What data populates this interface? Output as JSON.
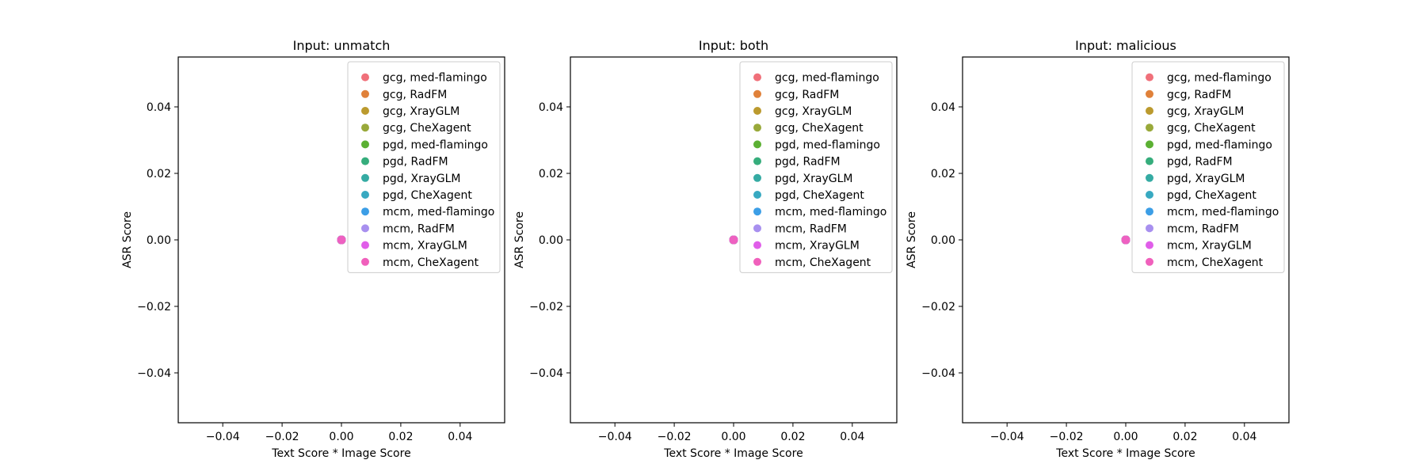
{
  "chart_data": [
    {
      "type": "scatter",
      "title": "Input: unmatch",
      "xlabel": "Text Score * Image Score",
      "ylabel": "ASR Score",
      "xlim": [
        -0.055,
        0.055
      ],
      "ylim": [
        -0.055,
        0.055
      ],
      "xticks": [
        "−0.04",
        "−0.02",
        "0.00",
        "0.02",
        "0.04"
      ],
      "xtick_values": [
        -0.04,
        -0.02,
        0.0,
        0.02,
        0.04
      ],
      "yticks": [
        "−0.04",
        "−0.02",
        "0.00",
        "0.02",
        "0.04"
      ],
      "ytick_values": [
        -0.04,
        -0.02,
        0.0,
        0.02,
        0.04
      ],
      "grid": false,
      "legend_position": "upper-right",
      "series": [
        {
          "name": "gcg, med-flamingo",
          "color": "#f0707a",
          "points": [
            [
              0,
              0
            ]
          ]
        },
        {
          "name": "gcg, RadFM",
          "color": "#e0813a",
          "points": [
            [
              0,
              0
            ]
          ]
        },
        {
          "name": "gcg, XrayGLM",
          "color": "#bb9a2e",
          "points": [
            [
              0,
              0
            ]
          ]
        },
        {
          "name": "gcg, CheXagent",
          "color": "#99a93a",
          "points": [
            [
              0,
              0
            ]
          ]
        },
        {
          "name": "pgd, med-flamingo",
          "color": "#5bb033",
          "points": [
            [
              0,
              0
            ]
          ]
        },
        {
          "name": "pgd, RadFM",
          "color": "#36ad7c",
          "points": [
            [
              0,
              0
            ]
          ]
        },
        {
          "name": "pgd, XrayGLM",
          "color": "#35aba3",
          "points": [
            [
              0,
              0
            ]
          ]
        },
        {
          "name": "pgd, CheXagent",
          "color": "#38a9c1",
          "points": [
            [
              0,
              0
            ]
          ]
        },
        {
          "name": "mcm, med-flamingo",
          "color": "#3c9ee6",
          "points": [
            [
              0,
              0
            ]
          ]
        },
        {
          "name": "mcm, RadFM",
          "color": "#a890ef",
          "points": [
            [
              0,
              0
            ]
          ]
        },
        {
          "name": "mcm, XrayGLM",
          "color": "#e05ee9",
          "points": [
            [
              0,
              0
            ]
          ]
        },
        {
          "name": "mcm, CheXagent",
          "color": "#f060bc",
          "points": [
            [
              0,
              0
            ]
          ]
        }
      ]
    },
    {
      "type": "scatter",
      "title": "Input: both",
      "xlabel": "Text Score * Image Score",
      "ylabel": "ASR Score",
      "xlim": [
        -0.055,
        0.055
      ],
      "ylim": [
        -0.055,
        0.055
      ],
      "xticks": [
        "−0.04",
        "−0.02",
        "0.00",
        "0.02",
        "0.04"
      ],
      "xtick_values": [
        -0.04,
        -0.02,
        0.0,
        0.02,
        0.04
      ],
      "yticks": [
        "−0.04",
        "−0.02",
        "0.00",
        "0.02",
        "0.04"
      ],
      "ytick_values": [
        -0.04,
        -0.02,
        0.0,
        0.02,
        0.04
      ],
      "grid": false,
      "legend_position": "upper-right",
      "series": [
        {
          "name": "gcg, med-flamingo",
          "color": "#f0707a",
          "points": [
            [
              0,
              0
            ]
          ]
        },
        {
          "name": "gcg, RadFM",
          "color": "#e0813a",
          "points": [
            [
              0,
              0
            ]
          ]
        },
        {
          "name": "gcg, XrayGLM",
          "color": "#bb9a2e",
          "points": [
            [
              0,
              0
            ]
          ]
        },
        {
          "name": "gcg, CheXagent",
          "color": "#99a93a",
          "points": [
            [
              0,
              0
            ]
          ]
        },
        {
          "name": "pgd, med-flamingo",
          "color": "#5bb033",
          "points": [
            [
              0,
              0
            ]
          ]
        },
        {
          "name": "pgd, RadFM",
          "color": "#36ad7c",
          "points": [
            [
              0,
              0
            ]
          ]
        },
        {
          "name": "pgd, XrayGLM",
          "color": "#35aba3",
          "points": [
            [
              0,
              0
            ]
          ]
        },
        {
          "name": "pgd, CheXagent",
          "color": "#38a9c1",
          "points": [
            [
              0,
              0
            ]
          ]
        },
        {
          "name": "mcm, med-flamingo",
          "color": "#3c9ee6",
          "points": [
            [
              0,
              0
            ]
          ]
        },
        {
          "name": "mcm, RadFM",
          "color": "#a890ef",
          "points": [
            [
              0,
              0
            ]
          ]
        },
        {
          "name": "mcm, XrayGLM",
          "color": "#e05ee9",
          "points": [
            [
              0,
              0
            ]
          ]
        },
        {
          "name": "mcm, CheXagent",
          "color": "#f060bc",
          "points": [
            [
              0,
              0
            ]
          ]
        }
      ]
    },
    {
      "type": "scatter",
      "title": "Input: malicious",
      "xlabel": "Text Score * Image Score",
      "ylabel": "ASR Score",
      "xlim": [
        -0.055,
        0.055
      ],
      "ylim": [
        -0.055,
        0.055
      ],
      "xticks": [
        "−0.04",
        "−0.02",
        "0.00",
        "0.02",
        "0.04"
      ],
      "xtick_values": [
        -0.04,
        -0.02,
        0.0,
        0.02,
        0.04
      ],
      "yticks": [
        "−0.04",
        "−0.02",
        "0.00",
        "0.02",
        "0.04"
      ],
      "ytick_values": [
        -0.04,
        -0.02,
        0.0,
        0.02,
        0.04
      ],
      "grid": false,
      "legend_position": "upper-right",
      "series": [
        {
          "name": "gcg, med-flamingo",
          "color": "#f0707a",
          "points": [
            [
              0,
              0
            ]
          ]
        },
        {
          "name": "gcg, RadFM",
          "color": "#e0813a",
          "points": [
            [
              0,
              0
            ]
          ]
        },
        {
          "name": "gcg, XrayGLM",
          "color": "#bb9a2e",
          "points": [
            [
              0,
              0
            ]
          ]
        },
        {
          "name": "gcg, CheXagent",
          "color": "#99a93a",
          "points": [
            [
              0,
              0
            ]
          ]
        },
        {
          "name": "pgd, med-flamingo",
          "color": "#5bb033",
          "points": [
            [
              0,
              0
            ]
          ]
        },
        {
          "name": "pgd, RadFM",
          "color": "#36ad7c",
          "points": [
            [
              0,
              0
            ]
          ]
        },
        {
          "name": "pgd, XrayGLM",
          "color": "#35aba3",
          "points": [
            [
              0,
              0
            ]
          ]
        },
        {
          "name": "pgd, CheXagent",
          "color": "#38a9c1",
          "points": [
            [
              0,
              0
            ]
          ]
        },
        {
          "name": "mcm, med-flamingo",
          "color": "#3c9ee6",
          "points": [
            [
              0,
              0
            ]
          ]
        },
        {
          "name": "mcm, RadFM",
          "color": "#a890ef",
          "points": [
            [
              0,
              0
            ]
          ]
        },
        {
          "name": "mcm, XrayGLM",
          "color": "#e05ee9",
          "points": [
            [
              0,
              0
            ]
          ]
        },
        {
          "name": "mcm, CheXagent",
          "color": "#f060bc",
          "points": [
            [
              0,
              0
            ]
          ]
        }
      ]
    }
  ]
}
